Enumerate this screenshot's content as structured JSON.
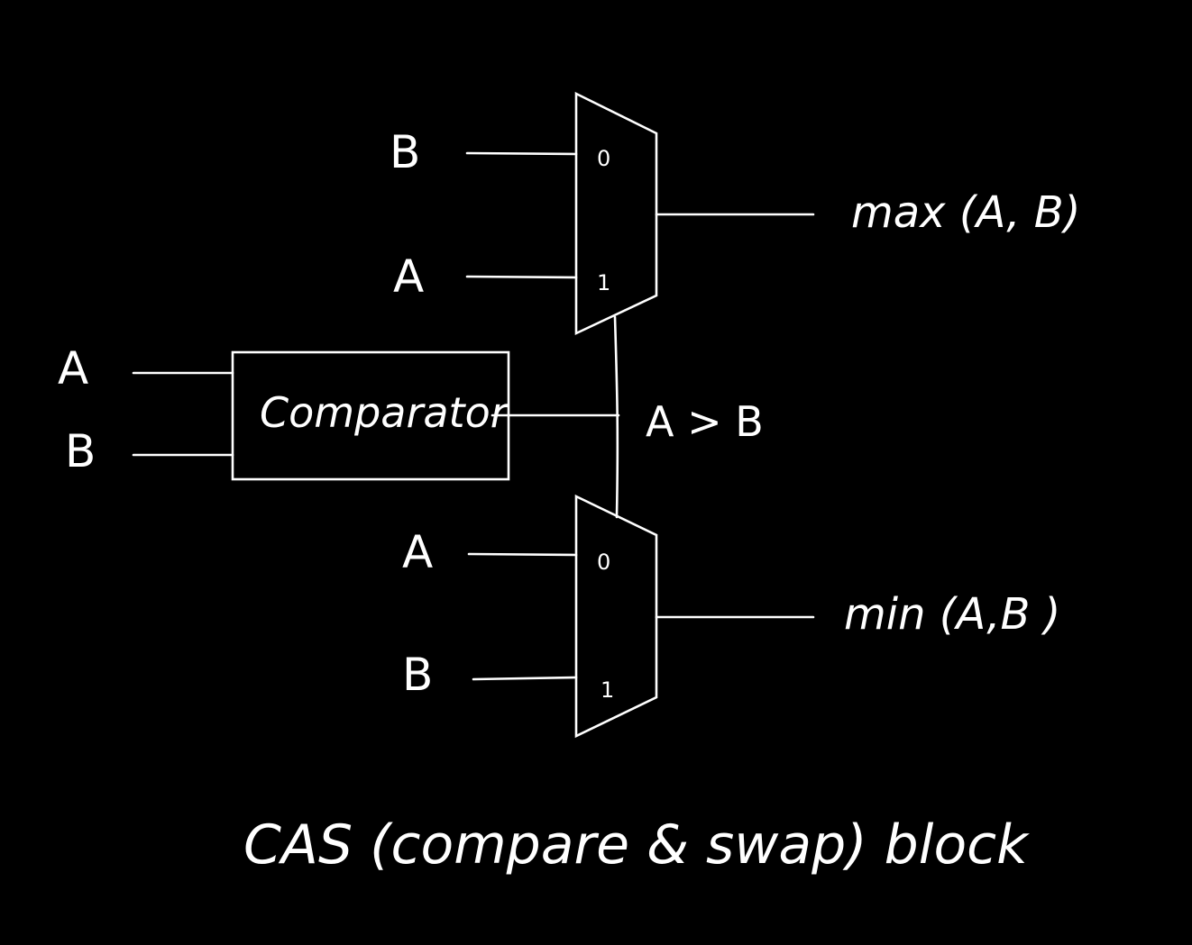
{
  "diagram": {
    "caption": "CAS (compare & swap) block",
    "comparator": {
      "label": "Comparator",
      "input_a": "A",
      "input_b": "B",
      "output_label": "A > B"
    },
    "mux_max": {
      "input_0_signal": "B",
      "input_1_signal": "A",
      "port_0": "0",
      "port_1": "1",
      "output": "max (A, B)"
    },
    "mux_min": {
      "input_0_signal": "A",
      "input_1_signal": "B",
      "port_0": "0",
      "port_1": "1",
      "output": "min (A,B )"
    }
  },
  "colors": {
    "background": "#000000",
    "ink": "#ffffff"
  }
}
